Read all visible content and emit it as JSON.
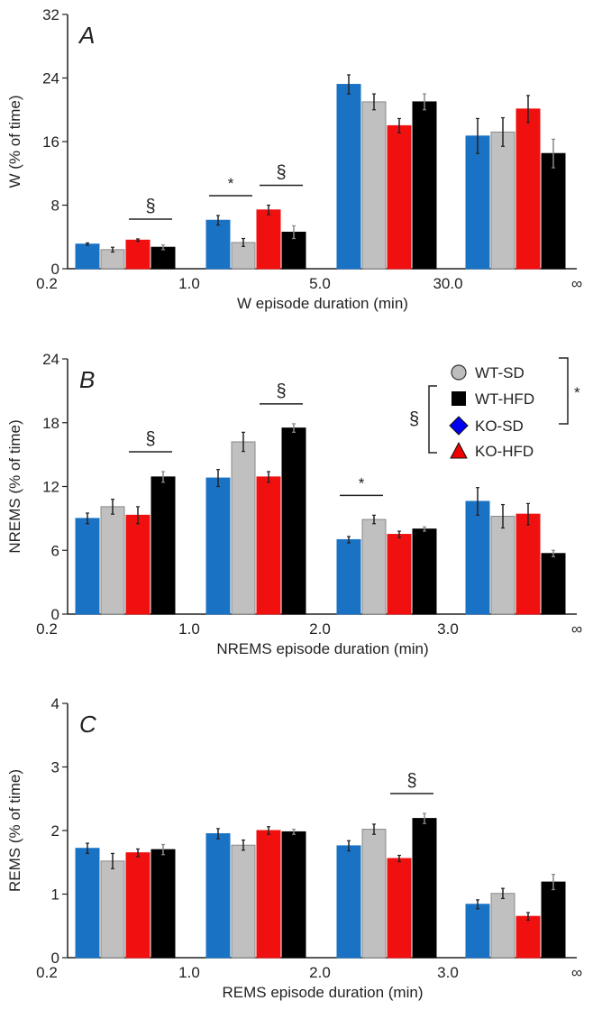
{
  "chart_data": [
    {
      "type": "bar",
      "panel_label": "A",
      "ylabel": "W (% of time)",
      "xlabel": "W episode duration (min)",
      "ylim": [
        0,
        32
      ],
      "yticks": [
        0,
        8,
        16,
        24,
        32
      ],
      "xtick_labels": [
        "0.2",
        "1.0",
        "5.0",
        "30.0",
        "∞"
      ],
      "series": [
        {
          "name": "KO-SD",
          "values": [
            3.1,
            6.1,
            23.2,
            16.7
          ],
          "errors": [
            0.15,
            0.6,
            1.2,
            2.2
          ]
        },
        {
          "name": "WT-SD",
          "values": [
            2.4,
            3.3,
            21.0,
            17.2
          ],
          "errors": [
            0.3,
            0.5,
            1.0,
            1.8
          ]
        },
        {
          "name": "KO-HFD",
          "values": [
            3.6,
            7.4,
            18.0,
            20.1
          ],
          "errors": [
            0.15,
            0.6,
            0.9,
            1.7
          ]
        },
        {
          "name": "WT-HFD",
          "values": [
            2.7,
            4.6,
            21.0,
            14.5
          ],
          "errors": [
            0.3,
            0.8,
            1.0,
            1.8
          ]
        }
      ],
      "annotations": [
        {
          "group": 0,
          "bars": [
            2,
            3
          ],
          "symbol": "§"
        },
        {
          "group": 1,
          "bars": [
            0,
            1
          ],
          "symbol": "*"
        },
        {
          "group": 1,
          "bars": [
            2,
            3
          ],
          "symbol": "§"
        }
      ]
    },
    {
      "type": "bar",
      "panel_label": "B",
      "ylabel": "NREMS (% of time)",
      "xlabel": "NREMS episode duration (min)",
      "ylim": [
        0,
        24
      ],
      "yticks": [
        0,
        6,
        12,
        18,
        24
      ],
      "xtick_labels": [
        "0.2",
        "1.0",
        "2.0",
        "3.0",
        "∞"
      ],
      "series": [
        {
          "name": "KO-SD",
          "values": [
            9.0,
            12.8,
            7.0,
            10.6
          ],
          "errors": [
            0.5,
            0.8,
            0.3,
            1.3
          ]
        },
        {
          "name": "WT-SD",
          "values": [
            10.1,
            16.2,
            8.9,
            9.2
          ],
          "errors": [
            0.7,
            0.9,
            0.4,
            1.1
          ]
        },
        {
          "name": "KO-HFD",
          "values": [
            9.3,
            12.9,
            7.5,
            9.4
          ],
          "errors": [
            0.8,
            0.5,
            0.3,
            1.0
          ]
        },
        {
          "name": "WT-HFD",
          "values": [
            12.9,
            17.5,
            8.0,
            5.7
          ],
          "errors": [
            0.5,
            0.4,
            0.2,
            0.3
          ]
        }
      ],
      "annotations": [
        {
          "group": 0,
          "bars": [
            2,
            3
          ],
          "symbol": "§"
        },
        {
          "group": 1,
          "bars": [
            2,
            3
          ],
          "symbol": "§"
        },
        {
          "group": 2,
          "bars": [
            0,
            1
          ],
          "symbol": "*"
        }
      ]
    },
    {
      "type": "bar",
      "panel_label": "C",
      "ylabel": "REMS (% of time)",
      "xlabel": "REMS episode duration (min)",
      "ylim": [
        0,
        4
      ],
      "yticks": [
        0,
        1,
        2,
        3,
        4
      ],
      "xtick_labels": [
        "0.2",
        "1.0",
        "2.0",
        "3.0",
        "∞"
      ],
      "series": [
        {
          "name": "KO-SD",
          "values": [
            1.72,
            1.95,
            1.76,
            0.84
          ],
          "errors": [
            0.08,
            0.08,
            0.08,
            0.07
          ]
        },
        {
          "name": "WT-SD",
          "values": [
            1.52,
            1.77,
            2.02,
            1.01
          ],
          "errors": [
            0.12,
            0.08,
            0.08,
            0.08
          ]
        },
        {
          "name": "KO-HFD",
          "values": [
            1.65,
            2.0,
            1.56,
            0.65
          ],
          "errors": [
            0.06,
            0.06,
            0.05,
            0.06
          ]
        },
        {
          "name": "WT-HFD",
          "values": [
            1.7,
            1.98,
            2.19,
            1.19
          ],
          "errors": [
            0.08,
            0.04,
            0.08,
            0.12
          ]
        }
      ],
      "annotations": [
        {
          "group": 2,
          "bars": [
            2,
            3
          ],
          "symbol": "§"
        }
      ]
    }
  ],
  "legend": {
    "entries": [
      {
        "name": "WT-SD",
        "marker": "circle",
        "color": "#bdbdbd"
      },
      {
        "name": "WT-HFD",
        "marker": "square",
        "color": "#000000"
      },
      {
        "name": "KO-SD",
        "marker": "diamond",
        "color": "#0000ee"
      },
      {
        "name": "KO-HFD",
        "marker": "triangle",
        "color": "#ee0000"
      }
    ],
    "bracket_star": {
      "symbol": "*",
      "spans": [
        "WT-SD",
        "KO-SD"
      ]
    },
    "bracket_section": {
      "symbol": "§",
      "spans": [
        "WT-HFD",
        "KO-HFD"
      ]
    },
    "placement": "top-right of panel B"
  },
  "colors": {
    "KO-SD": "#1a72c4",
    "WT-SD": "#c0c0c0",
    "KO-HFD": "#f01010",
    "WT-HFD": "#000000"
  }
}
